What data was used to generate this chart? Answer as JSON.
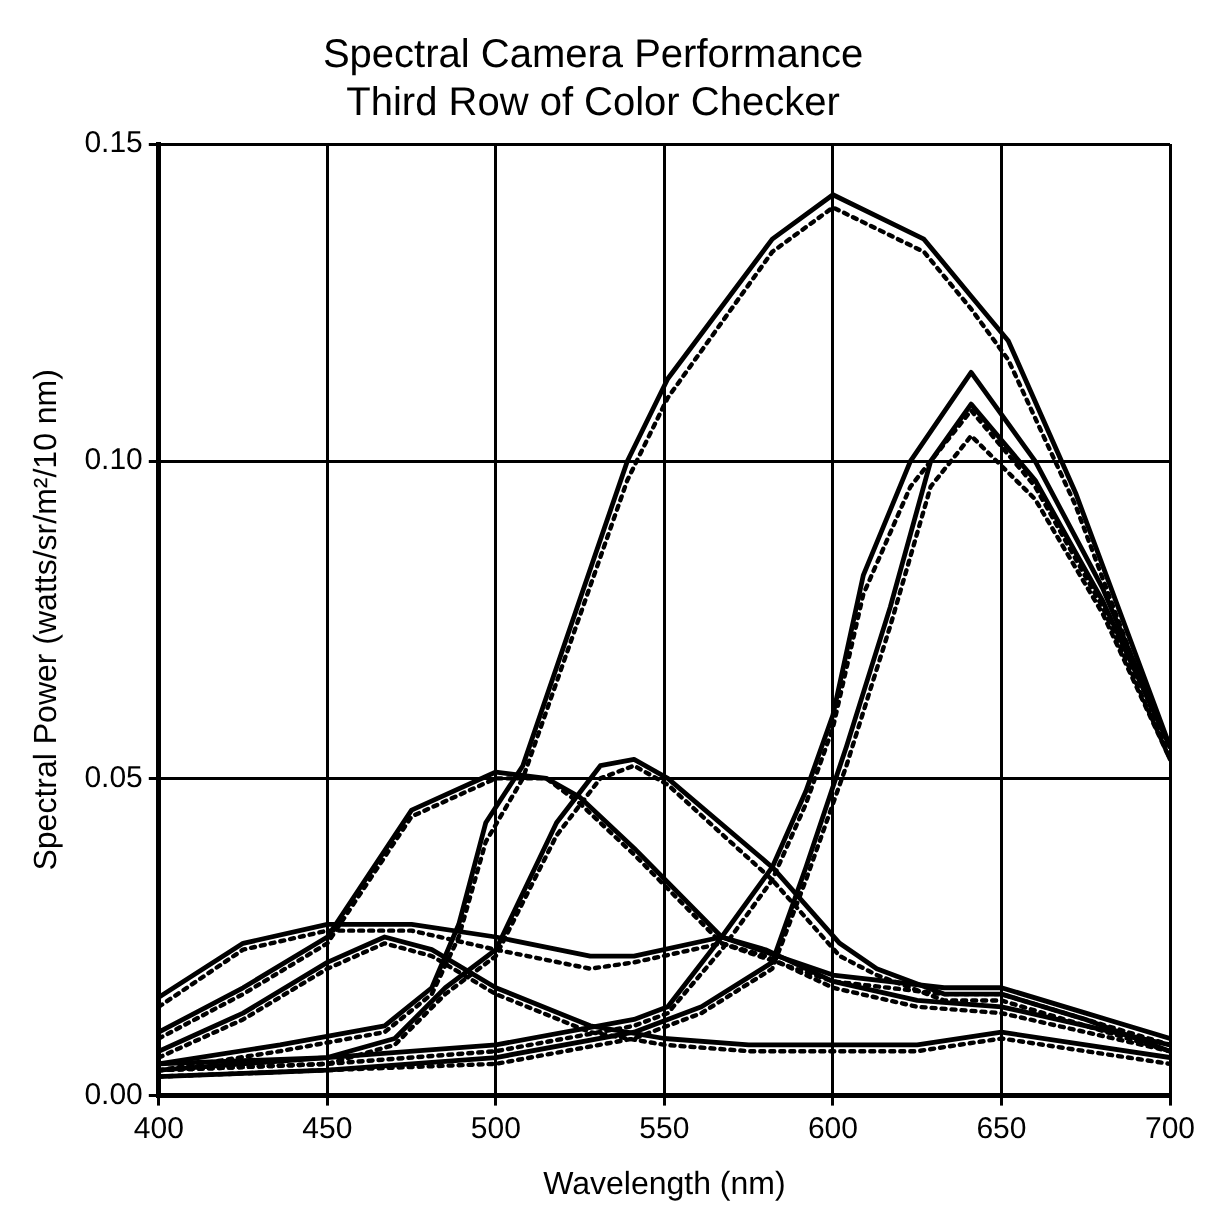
{
  "chart_data": {
    "type": "line",
    "title": "Spectral Camera Performance",
    "subtitle": "Third Row of Color Checker",
    "xlabel": "Wavelength (nm)",
    "ylabel": "Spectral Power (watts/sr/m²/10 nm)",
    "xlim": [
      400,
      700
    ],
    "ylim": [
      0,
      0.15
    ],
    "xticks": [
      400,
      450,
      500,
      550,
      600,
      650,
      700
    ],
    "yticks": [
      {
        "value": 0,
        "label": "0.00"
      },
      {
        "value": 0.05,
        "label": "0.05"
      },
      {
        "value": 0.1,
        "label": "0.10"
      },
      {
        "value": 0.15,
        "label": "0.15"
      }
    ],
    "grid": true,
    "legend": false,
    "marker": "none",
    "series": [
      {
        "color": "#000000",
        "line_style": "solid",
        "x": [
          400,
          436,
          467,
          481,
          489,
          497,
          508,
          539,
          551,
          582,
          600,
          627,
          641,
          652,
          672,
          700
        ],
        "values": [
          0.005,
          0.008,
          0.011,
          0.017,
          0.027,
          0.043,
          0.052,
          0.1,
          0.113,
          0.135,
          0.142,
          0.135,
          0.126,
          0.119,
          0.095,
          0.055
        ]
      },
      {
        "color": "#000000",
        "line_style": "dotted",
        "x": [
          400,
          436,
          467,
          481,
          489,
          497,
          508,
          539,
          551,
          582,
          600,
          627,
          641,
          652,
          672,
          700
        ],
        "values": [
          0.004,
          0.007,
          0.01,
          0.016,
          0.025,
          0.04,
          0.05,
          0.097,
          0.11,
          0.133,
          0.14,
          0.133,
          0.124,
          0.116,
          0.093,
          0.053
        ]
      },
      {
        "color": "#000000",
        "line_style": "solid",
        "x": [
          400,
          450,
          500,
          541,
          551,
          567,
          582,
          592,
          600,
          609,
          623,
          641,
          660,
          680,
          700
        ],
        "values": [
          0.005,
          0.006,
          0.008,
          0.012,
          0.014,
          0.025,
          0.036,
          0.048,
          0.06,
          0.082,
          0.1,
          0.114,
          0.1,
          0.08,
          0.055
        ]
      },
      {
        "color": "#000000",
        "line_style": "dotted",
        "x": [
          400,
          450,
          500,
          541,
          551,
          567,
          582,
          592,
          600,
          609,
          623,
          641,
          660,
          680,
          700
        ],
        "values": [
          0.004,
          0.005,
          0.007,
          0.011,
          0.013,
          0.023,
          0.034,
          0.046,
          0.058,
          0.079,
          0.096,
          0.108,
          0.096,
          0.077,
          0.053
        ]
      },
      {
        "color": "#000000",
        "line_style": "solid",
        "x": [
          400,
          450,
          500,
          541,
          561,
          582,
          592,
          604,
          617,
          629,
          641,
          660,
          680,
          700
        ],
        "values": [
          0.003,
          0.004,
          0.006,
          0.01,
          0.014,
          0.021,
          0.036,
          0.055,
          0.077,
          0.1,
          0.109,
          0.097,
          0.078,
          0.055
        ]
      },
      {
        "color": "#000000",
        "line_style": "dotted",
        "x": [
          400,
          450,
          500,
          541,
          561,
          582,
          592,
          604,
          617,
          629,
          641,
          660,
          680,
          700
        ],
        "values": [
          0.003,
          0.004,
          0.005,
          0.009,
          0.013,
          0.02,
          0.034,
          0.052,
          0.074,
          0.096,
          0.104,
          0.094,
          0.076,
          0.053
        ]
      },
      {
        "color": "#000000",
        "line_style": "solid",
        "x": [
          400,
          450,
          470,
          485,
          500,
          518,
          531,
          541,
          551,
          582,
          602,
          613,
          633,
          650,
          675,
          700
        ],
        "values": [
          0.004,
          0.006,
          0.009,
          0.017,
          0.023,
          0.043,
          0.052,
          0.053,
          0.05,
          0.036,
          0.024,
          0.02,
          0.016,
          0.016,
          0.012,
          0.007
        ]
      },
      {
        "color": "#000000",
        "line_style": "dotted",
        "x": [
          400,
          450,
          470,
          485,
          500,
          518,
          531,
          541,
          551,
          582,
          602,
          613,
          633,
          650,
          675,
          700
        ],
        "values": [
          0.004,
          0.005,
          0.008,
          0.016,
          0.022,
          0.041,
          0.05,
          0.052,
          0.049,
          0.034,
          0.022,
          0.019,
          0.015,
          0.015,
          0.011,
          0.007
        ]
      },
      {
        "color": "#000000",
        "line_style": "solid",
        "x": [
          400,
          425,
          450,
          475,
          500,
          515,
          525,
          541,
          567,
          600,
          633,
          650,
          675,
          700
        ],
        "values": [
          0.01,
          0.017,
          0.025,
          0.045,
          0.051,
          0.05,
          0.047,
          0.039,
          0.025,
          0.019,
          0.017,
          0.017,
          0.013,
          0.009
        ]
      },
      {
        "color": "#000000",
        "line_style": "dotted",
        "x": [
          400,
          425,
          450,
          475,
          500,
          515,
          525,
          541,
          567,
          600,
          633,
          650,
          675,
          700
        ],
        "values": [
          0.009,
          0.016,
          0.024,
          0.044,
          0.05,
          0.05,
          0.046,
          0.038,
          0.024,
          0.018,
          0.016,
          0.016,
          0.012,
          0.008
        ]
      },
      {
        "color": "#000000",
        "line_style": "solid",
        "x": [
          400,
          425,
          450,
          475,
          500,
          528,
          541,
          567,
          580,
          600,
          625,
          650,
          675,
          700
        ],
        "values": [
          0.0155,
          0.024,
          0.027,
          0.027,
          0.025,
          0.022,
          0.022,
          0.025,
          0.023,
          0.018,
          0.015,
          0.014,
          0.011,
          0.008
        ]
      },
      {
        "color": "#000000",
        "line_style": "dotted",
        "x": [
          400,
          425,
          450,
          475,
          500,
          528,
          541,
          567,
          580,
          600,
          625,
          650,
          675,
          700
        ],
        "values": [
          0.014,
          0.023,
          0.026,
          0.026,
          0.023,
          0.02,
          0.021,
          0.024,
          0.022,
          0.017,
          0.014,
          0.013,
          0.01,
          0.007
        ]
      },
      {
        "color": "#000000",
        "line_style": "solid",
        "x": [
          400,
          425,
          450,
          467,
          481,
          500,
          528,
          550,
          575,
          600,
          625,
          650,
          675,
          700
        ],
        "values": [
          0.007,
          0.013,
          0.021,
          0.025,
          0.023,
          0.017,
          0.011,
          0.009,
          0.008,
          0.008,
          0.008,
          0.01,
          0.008,
          0.006
        ]
      },
      {
        "color": "#000000",
        "line_style": "dotted",
        "x": [
          400,
          425,
          450,
          467,
          481,
          500,
          528,
          550,
          575,
          600,
          625,
          650,
          675,
          700
        ],
        "values": [
          0.006,
          0.012,
          0.02,
          0.024,
          0.022,
          0.016,
          0.01,
          0.008,
          0.007,
          0.007,
          0.007,
          0.009,
          0.007,
          0.005
        ]
      }
    ]
  }
}
